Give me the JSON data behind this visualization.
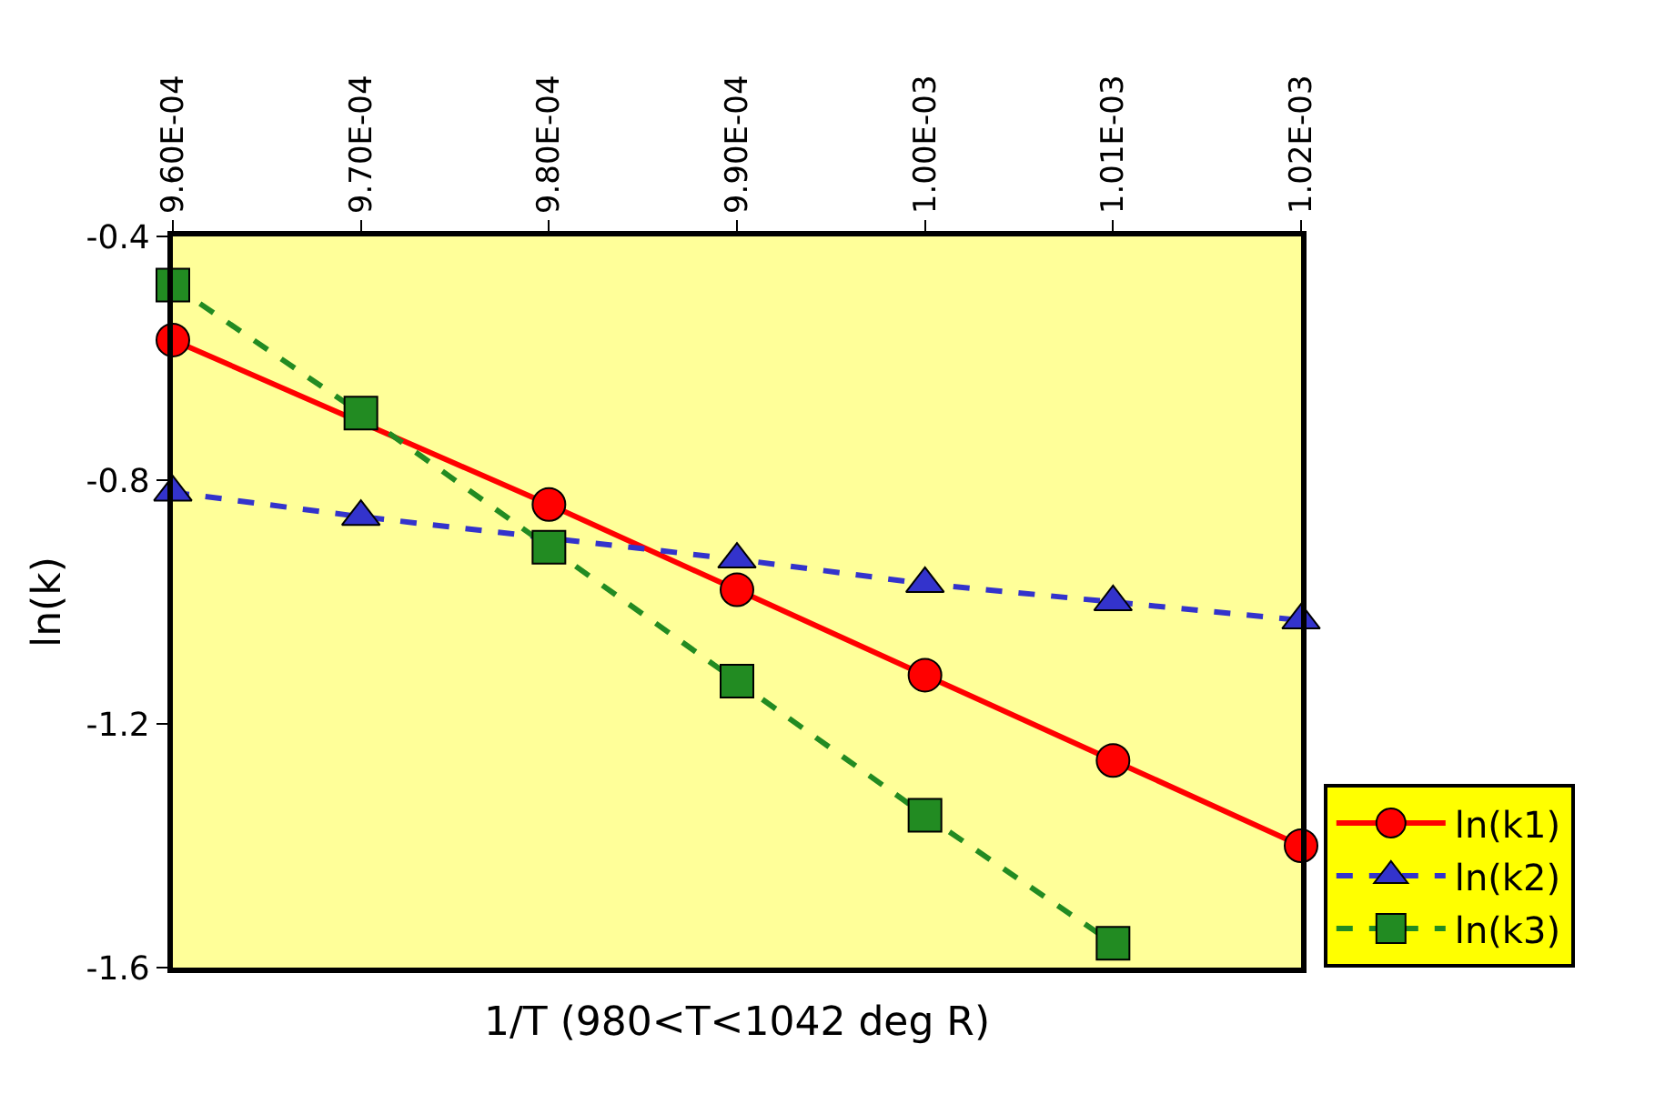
{
  "chart_data": {
    "type": "line",
    "xlabel": "1/T (980<T<1042 deg R)",
    "ylabel": "ln(k)",
    "x": [
      0.00096,
      0.00097,
      0.00098,
      0.00099,
      0.001,
      0.00101,
      0.00102
    ],
    "xlim": [
      0.00096,
      0.00102
    ],
    "xticks": [
      {
        "value": 0.00096,
        "label": "9.60E-04"
      },
      {
        "value": 0.00097,
        "label": "9.70E-04"
      },
      {
        "value": 0.00098,
        "label": "9.80E-04"
      },
      {
        "value": 0.00099,
        "label": "9.90E-04"
      },
      {
        "value": 0.001,
        "label": "1.00E-03"
      },
      {
        "value": 0.00101,
        "label": "1.01E-03"
      },
      {
        "value": 0.00102,
        "label": "1.02E-03"
      }
    ],
    "ylim": [
      -1.6,
      -0.4
    ],
    "yticks": [
      -0.4,
      -0.8,
      -1.2,
      -1.6
    ],
    "grid": false,
    "legend": "right",
    "series": [
      {
        "name": "ln(k1)",
        "color": "#ff0000",
        "marker": "circle",
        "line_style": "solid",
        "values": [
          -0.57,
          null,
          -0.84,
          -0.98,
          -1.12,
          -1.26,
          -1.4
        ]
      },
      {
        "name": "ln(k2)",
        "color": "#3333cc",
        "marker": "triangle",
        "line_style": "dashed",
        "values": [
          -0.82,
          -0.86,
          null,
          -0.93,
          -0.97,
          -1.0,
          -1.03
        ]
      },
      {
        "name": "ln(k3)",
        "color": "#228b22",
        "marker": "square",
        "line_style": "dashed",
        "values": [
          -0.48,
          -0.69,
          -0.91,
          -1.13,
          -1.35,
          -1.56,
          null
        ]
      }
    ]
  }
}
